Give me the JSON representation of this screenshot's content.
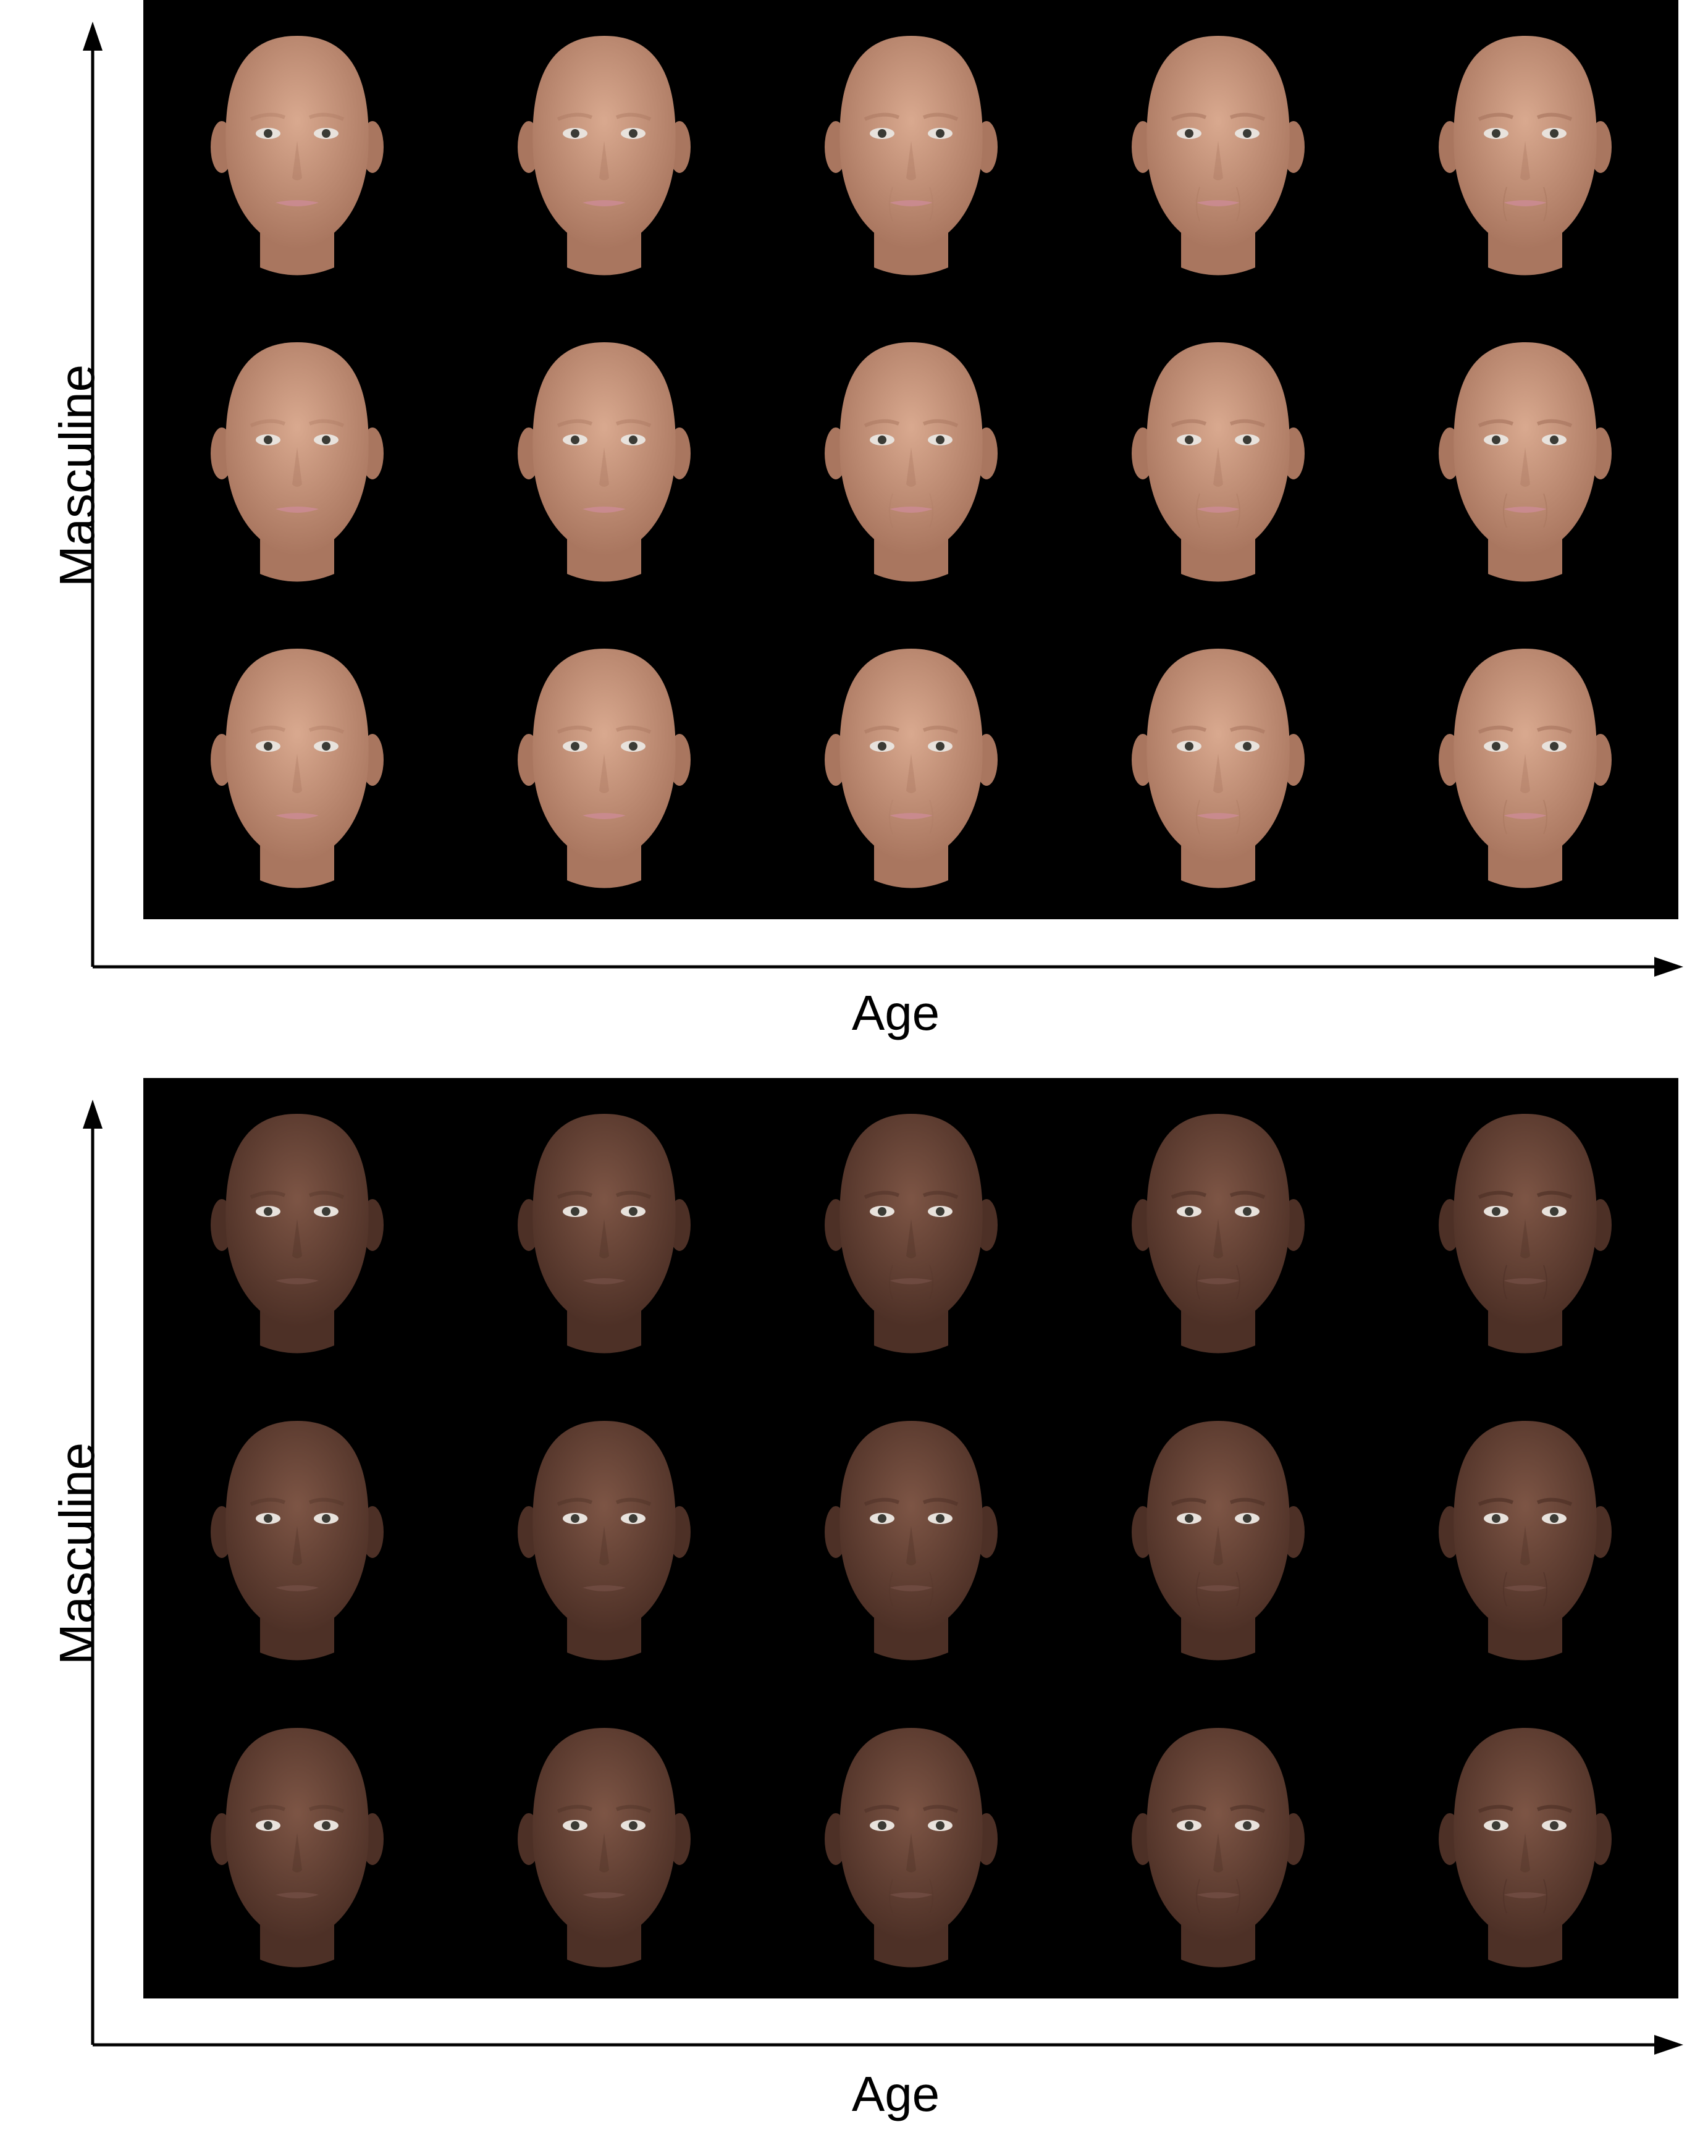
{
  "panels": [
    {
      "x_axis_label": "Age",
      "y_axis_label": "Masculine",
      "skin_tone": "#d9a98f",
      "skin_shadow": "#a9765f",
      "lip_color": "#c98a8e",
      "rows": 3,
      "columns": 5
    },
    {
      "x_axis_label": "Age",
      "y_axis_label": "Masculine",
      "skin_tone": "#7d5545",
      "skin_shadow": "#4d3026",
      "lip_color": "#6e4a40",
      "rows": 3,
      "columns": 5
    }
  ],
  "colors": {
    "grid_background": "#000000",
    "axis": "#000000",
    "page_background": "#ffffff"
  }
}
